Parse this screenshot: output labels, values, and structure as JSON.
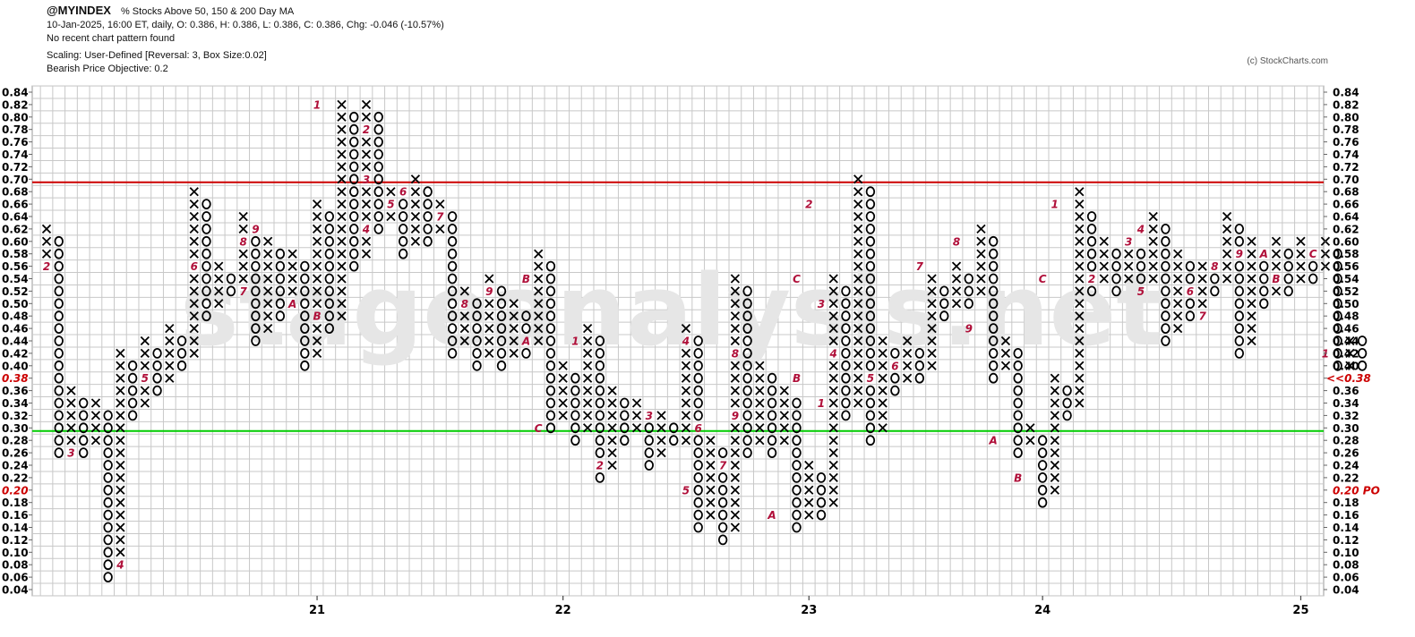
{
  "header": {
    "symbol": "@MYINDEX",
    "description": "% Stocks Above 50, 150 & 200 Day MA",
    "ohlc_line": "10-Jan-2025, 16:00 ET, daily, O: 0.386, H: 0.386, L: 0.386, C: 0.386, Chg: -0.046 (-10.57%)",
    "pattern_line": "No recent chart pattern found",
    "scaling_line": "Scaling: User-Defined [Reversal: 3, Box Size:0.02]",
    "objective_line": "Bearish Price Objective: 0.2"
  },
  "copyright": "(c) StockCharts.com",
  "watermark": "stageanalysis.net",
  "colors": {
    "x_mark": "#000000",
    "o_mark": "#000000",
    "month_label": "#b0103a",
    "resistance_line": "#cc0000",
    "support_line": "#00cc00",
    "grid": "#c8c8c8",
    "last_price": "#cc0000",
    "price_objective": "#cc0000"
  },
  "chart_data": {
    "type": "point-and-figure",
    "box_size": 0.02,
    "reversal": 3,
    "y_range": [
      0.04,
      0.84
    ],
    "y_ticks": [
      "0.84",
      "0.82",
      "0.80",
      "0.78",
      "0.76",
      "0.74",
      "0.72",
      "0.70",
      "0.68",
      "0.66",
      "0.64",
      "0.62",
      "0.60",
      "0.58",
      "0.56",
      "0.54",
      "0.52",
      "0.50",
      "0.48",
      "0.46",
      "0.44",
      "0.42",
      "0.40",
      "0.38",
      "0.36",
      "0.34",
      "0.32",
      "0.30",
      "0.28",
      "0.26",
      "0.24",
      "0.22",
      "0.20",
      "0.18",
      "0.16",
      "0.14",
      "0.12",
      "0.10",
      "0.08",
      "0.06",
      "0.04"
    ],
    "x_ticks": [
      {
        "label": "21",
        "column": 22
      },
      {
        "label": "22",
        "column": 42
      },
      {
        "label": "23",
        "column": 62
      },
      {
        "label": "24",
        "column": 81
      },
      {
        "label": "25",
        "column": 102
      }
    ],
    "horizontal_lines": [
      {
        "value": 0.695,
        "color": "#cc0000"
      },
      {
        "value": 0.295,
        "color": "#00cc00"
      }
    ],
    "last_price_label": "<<0.38",
    "last_price_value": 0.38,
    "left_highlight_ticks": [
      "0.38",
      "0.20"
    ],
    "price_objective_label": "0.20 PO",
    "price_objective_value": 0.2,
    "columns": [
      {
        "type": "X",
        "low": 0.56,
        "high": 0.62
      },
      {
        "type": "O",
        "low": 0.26,
        "high": 0.6
      },
      {
        "type": "X",
        "low": 0.28,
        "high": 0.36
      },
      {
        "type": "O",
        "low": 0.26,
        "high": 0.34
      },
      {
        "type": "X",
        "low": 0.28,
        "high": 0.34
      },
      {
        "type": "O",
        "low": 0.06,
        "high": 0.32
      },
      {
        "type": "X",
        "low": 0.08,
        "high": 0.42
      },
      {
        "type": "O",
        "low": 0.32,
        "high": 0.4
      },
      {
        "type": "X",
        "low": 0.34,
        "high": 0.44
      },
      {
        "type": "O",
        "low": 0.36,
        "high": 0.42
      },
      {
        "type": "X",
        "low": 0.38,
        "high": 0.46
      },
      {
        "type": "O",
        "low": 0.4,
        "high": 0.44
      },
      {
        "type": "X",
        "low": 0.42,
        "high": 0.68
      },
      {
        "type": "O",
        "low": 0.48,
        "high": 0.66
      },
      {
        "type": "X",
        "low": 0.5,
        "high": 0.56
      },
      {
        "type": "O",
        "low": 0.52,
        "high": 0.54
      },
      {
        "type": "X",
        "low": 0.54,
        "high": 0.64
      },
      {
        "type": "O",
        "low": 0.44,
        "high": 0.62
      },
      {
        "type": "X",
        "low": 0.46,
        "high": 0.6
      },
      {
        "type": "O",
        "low": 0.48,
        "high": 0.58
      },
      {
        "type": "X",
        "low": 0.5,
        "high": 0.58
      },
      {
        "type": "O",
        "low": 0.4,
        "high": 0.56
      },
      {
        "type": "X",
        "low": 0.42,
        "high": 0.66
      },
      {
        "type": "O",
        "low": 0.46,
        "high": 0.64
      },
      {
        "type": "X",
        "low": 0.48,
        "high": 0.82
      },
      {
        "type": "O",
        "low": 0.56,
        "high": 0.8
      },
      {
        "type": "X",
        "low": 0.58,
        "high": 0.82
      },
      {
        "type": "O",
        "low": 0.62,
        "high": 0.8
      },
      {
        "type": "X",
        "low": 0.64,
        "high": 0.68
      },
      {
        "type": "O",
        "low": 0.58,
        "high": 0.66
      },
      {
        "type": "X",
        "low": 0.6,
        "high": 0.7
      },
      {
        "type": "O",
        "low": 0.6,
        "high": 0.68
      },
      {
        "type": "X",
        "low": 0.62,
        "high": 0.66
      },
      {
        "type": "O",
        "low": 0.42,
        "high": 0.64
      },
      {
        "type": "X",
        "low": 0.44,
        "high": 0.52
      },
      {
        "type": "O",
        "low": 0.4,
        "high": 0.5
      },
      {
        "type": "X",
        "low": 0.42,
        "high": 0.54
      },
      {
        "type": "O",
        "low": 0.4,
        "high": 0.52
      },
      {
        "type": "X",
        "low": 0.42,
        "high": 0.5
      },
      {
        "type": "O",
        "low": 0.42,
        "high": 0.48
      },
      {
        "type": "X",
        "low": 0.44,
        "high": 0.58
      },
      {
        "type": "O",
        "low": 0.3,
        "high": 0.56
      },
      {
        "type": "X",
        "low": 0.32,
        "high": 0.4
      },
      {
        "type": "O",
        "low": 0.28,
        "high": 0.38
      },
      {
        "type": "X",
        "low": 0.3,
        "high": 0.46
      },
      {
        "type": "O",
        "low": 0.22,
        "high": 0.44
      },
      {
        "type": "X",
        "low": 0.24,
        "high": 0.36
      },
      {
        "type": "O",
        "low": 0.28,
        "high": 0.34
      },
      {
        "type": "X",
        "low": 0.3,
        "high": 0.34
      },
      {
        "type": "O",
        "low": 0.24,
        "high": 0.32
      },
      {
        "type": "X",
        "low": 0.26,
        "high": 0.32
      },
      {
        "type": "O",
        "low": 0.28,
        "high": 0.3
      },
      {
        "type": "X",
        "low": 0.28,
        "high": 0.46
      },
      {
        "type": "O",
        "low": 0.14,
        "high": 0.44
      },
      {
        "type": "X",
        "low": 0.16,
        "high": 0.28
      },
      {
        "type": "O",
        "low": 0.12,
        "high": 0.26
      },
      {
        "type": "X",
        "low": 0.14,
        "high": 0.54
      },
      {
        "type": "O",
        "low": 0.26,
        "high": 0.52
      },
      {
        "type": "X",
        "low": 0.28,
        "high": 0.4
      },
      {
        "type": "O",
        "low": 0.26,
        "high": 0.38
      },
      {
        "type": "X",
        "low": 0.28,
        "high": 0.36
      },
      {
        "type": "O",
        "low": 0.14,
        "high": 0.34
      },
      {
        "type": "X",
        "low": 0.16,
        "high": 0.24
      },
      {
        "type": "O",
        "low": 0.16,
        "high": 0.22
      },
      {
        "type": "X",
        "low": 0.18,
        "high": 0.54
      },
      {
        "type": "O",
        "low": 0.32,
        "high": 0.52
      },
      {
        "type": "X",
        "low": 0.34,
        "high": 0.7
      },
      {
        "type": "O",
        "low": 0.28,
        "high": 0.68
      },
      {
        "type": "X",
        "low": 0.3,
        "high": 0.44
      },
      {
        "type": "O",
        "low": 0.36,
        "high": 0.42
      },
      {
        "type": "X",
        "low": 0.38,
        "high": 0.44
      },
      {
        "type": "O",
        "low": 0.38,
        "high": 0.42
      },
      {
        "type": "X",
        "low": 0.4,
        "high": 0.54
      },
      {
        "type": "O",
        "low": 0.48,
        "high": 0.52
      },
      {
        "type": "X",
        "low": 0.5,
        "high": 0.56
      },
      {
        "type": "O",
        "low": 0.5,
        "high": 0.54
      },
      {
        "type": "X",
        "low": 0.52,
        "high": 0.62
      },
      {
        "type": "O",
        "low": 0.38,
        "high": 0.6
      },
      {
        "type": "X",
        "low": 0.4,
        "high": 0.44
      },
      {
        "type": "O",
        "low": 0.26,
        "high": 0.42
      },
      {
        "type": "X",
        "low": 0.28,
        "high": 0.3
      },
      {
        "type": "O",
        "low": 0.18,
        "high": 0.28
      },
      {
        "type": "X",
        "low": 0.2,
        "high": 0.38
      },
      {
        "type": "O",
        "low": 0.32,
        "high": 0.36
      },
      {
        "type": "X",
        "low": 0.34,
        "high": 0.68
      },
      {
        "type": "O",
        "low": 0.52,
        "high": 0.64
      },
      {
        "type": "X",
        "low": 0.54,
        "high": 0.6
      },
      {
        "type": "O",
        "low": 0.52,
        "high": 0.58
      },
      {
        "type": "X",
        "low": 0.54,
        "high": 0.6
      },
      {
        "type": "O",
        "low": 0.52,
        "high": 0.58
      },
      {
        "type": "X",
        "low": 0.54,
        "high": 0.64
      },
      {
        "type": "O",
        "low": 0.44,
        "high": 0.62
      },
      {
        "type": "X",
        "low": 0.46,
        "high": 0.58
      },
      {
        "type": "O",
        "low": 0.48,
        "high": 0.56
      },
      {
        "type": "X",
        "low": 0.5,
        "high": 0.56
      },
      {
        "type": "O",
        "low": 0.52,
        "high": 0.54
      },
      {
        "type": "X",
        "low": 0.54,
        "high": 0.64
      },
      {
        "type": "O",
        "low": 0.42,
        "high": 0.62
      },
      {
        "type": "X",
        "low": 0.44,
        "high": 0.6
      },
      {
        "type": "O",
        "low": 0.5,
        "high": 0.58
      },
      {
        "type": "X",
        "low": 0.52,
        "high": 0.6
      },
      {
        "type": "O",
        "low": 0.52,
        "high": 0.58
      },
      {
        "type": "X",
        "low": 0.54,
        "high": 0.6
      },
      {
        "type": "O",
        "low": 0.54,
        "high": 0.58
      },
      {
        "type": "X",
        "low": 0.56,
        "high": 0.6
      },
      {
        "type": "O",
        "low": 0.4,
        "high": 0.58
      },
      {
        "type": "X",
        "low": 0.4,
        "high": 0.44
      },
      {
        "type": "O",
        "low": 0.4,
        "high": 0.44
      }
    ],
    "month_labels": [
      {
        "column": 0,
        "value": 0.56,
        "label": "2"
      },
      {
        "column": 2,
        "value": 0.26,
        "label": "3"
      },
      {
        "column": 6,
        "value": 0.08,
        "label": "4"
      },
      {
        "column": 8,
        "value": 0.38,
        "label": "5"
      },
      {
        "column": 12,
        "value": 0.56,
        "label": "6"
      },
      {
        "column": 16,
        "value": 0.52,
        "label": "7"
      },
      {
        "column": 16,
        "value": 0.6,
        "label": "8"
      },
      {
        "column": 17,
        "value": 0.62,
        "label": "9"
      },
      {
        "column": 20,
        "value": 0.5,
        "label": "A"
      },
      {
        "column": 22,
        "value": 0.48,
        "label": "B"
      },
      {
        "column": 22,
        "value": 0.82,
        "label": "1"
      },
      {
        "column": 26,
        "value": 0.78,
        "label": "2"
      },
      {
        "column": 26,
        "value": 0.7,
        "label": "3"
      },
      {
        "column": 26,
        "value": 0.62,
        "label": "4"
      },
      {
        "column": 28,
        "value": 0.66,
        "label": "5"
      },
      {
        "column": 29,
        "value": 0.68,
        "label": "6"
      },
      {
        "column": 32,
        "value": 0.64,
        "label": "7"
      },
      {
        "column": 34,
        "value": 0.5,
        "label": "8"
      },
      {
        "column": 36,
        "value": 0.52,
        "label": "9"
      },
      {
        "column": 39,
        "value": 0.44,
        "label": "A"
      },
      {
        "column": 39,
        "value": 0.54,
        "label": "B"
      },
      {
        "column": 40,
        "value": 0.3,
        "label": "C"
      },
      {
        "column": 43,
        "value": 0.44,
        "label": "1"
      },
      {
        "column": 45,
        "value": 0.24,
        "label": "2"
      },
      {
        "column": 49,
        "value": 0.32,
        "label": "3"
      },
      {
        "column": 52,
        "value": 0.44,
        "label": "4"
      },
      {
        "column": 52,
        "value": 0.2,
        "label": "5"
      },
      {
        "column": 53,
        "value": 0.3,
        "label": "6"
      },
      {
        "column": 55,
        "value": 0.24,
        "label": "7"
      },
      {
        "column": 56,
        "value": 0.42,
        "label": "8"
      },
      {
        "column": 56,
        "value": 0.32,
        "label": "9"
      },
      {
        "column": 59,
        "value": 0.16,
        "label": "A"
      },
      {
        "column": 61,
        "value": 0.38,
        "label": "B"
      },
      {
        "column": 61,
        "value": 0.54,
        "label": "C"
      },
      {
        "column": 62,
        "value": 0.66,
        "label": "2"
      },
      {
        "column": 63,
        "value": 0.5,
        "label": "3"
      },
      {
        "column": 63,
        "value": 0.34,
        "label": "1"
      },
      {
        "column": 64,
        "value": 0.42,
        "label": "4"
      },
      {
        "column": 67,
        "value": 0.38,
        "label": "5"
      },
      {
        "column": 69,
        "value": 0.4,
        "label": "6"
      },
      {
        "column": 71,
        "value": 0.56,
        "label": "7"
      },
      {
        "column": 74,
        "value": 0.6,
        "label": "8"
      },
      {
        "column": 75,
        "value": 0.46,
        "label": "9"
      },
      {
        "column": 77,
        "value": 0.28,
        "label": "A"
      },
      {
        "column": 79,
        "value": 0.22,
        "label": "B"
      },
      {
        "column": 81,
        "value": 0.54,
        "label": "C"
      },
      {
        "column": 82,
        "value": 0.66,
        "label": "1"
      },
      {
        "column": 85,
        "value": 0.54,
        "label": "2"
      },
      {
        "column": 88,
        "value": 0.6,
        "label": "3"
      },
      {
        "column": 89,
        "value": 0.62,
        "label": "4"
      },
      {
        "column": 89,
        "value": 0.52,
        "label": "5"
      },
      {
        "column": 93,
        "value": 0.52,
        "label": "6"
      },
      {
        "column": 94,
        "value": 0.48,
        "label": "7"
      },
      {
        "column": 95,
        "value": 0.56,
        "label": "8"
      },
      {
        "column": 97,
        "value": 0.58,
        "label": "9"
      },
      {
        "column": 99,
        "value": 0.58,
        "label": "A"
      },
      {
        "column": 100,
        "value": 0.54,
        "label": "B"
      },
      {
        "column": 103,
        "value": 0.58,
        "label": "C"
      },
      {
        "column": 104,
        "value": 0.42,
        "label": "1"
      }
    ]
  }
}
